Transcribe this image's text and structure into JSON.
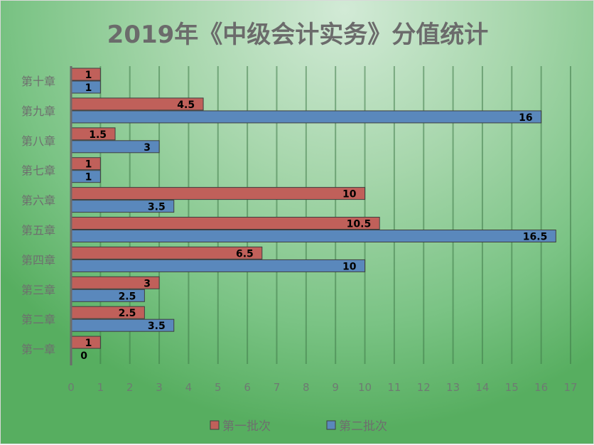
{
  "chart_data": {
    "type": "bar",
    "orientation": "horizontal",
    "title": "2019年《中级会计实务》分值统计",
    "categories": [
      "第一章",
      "第二章",
      "第三章",
      "第四章",
      "第五章",
      "第六章",
      "第七章",
      "第八章",
      "第九章",
      "第十章"
    ],
    "series": [
      {
        "name": "第一批次",
        "color": "#c0605a",
        "values": [
          1,
          2.5,
          3,
          6.5,
          10.5,
          10,
          1,
          1.5,
          4.5,
          1
        ]
      },
      {
        "name": "第二批次",
        "color": "#5a88bc",
        "values": [
          0,
          3.5,
          2.5,
          10,
          16.5,
          3.5,
          1,
          3,
          16,
          1
        ]
      }
    ],
    "xlim": [
      0,
      17
    ],
    "xticks": [
      0,
      1,
      2,
      3,
      4,
      5,
      6,
      7,
      8,
      9,
      10,
      11,
      12,
      13,
      14,
      15,
      16,
      17
    ],
    "grid": true,
    "data_labels": true,
    "legend": "bottom"
  }
}
